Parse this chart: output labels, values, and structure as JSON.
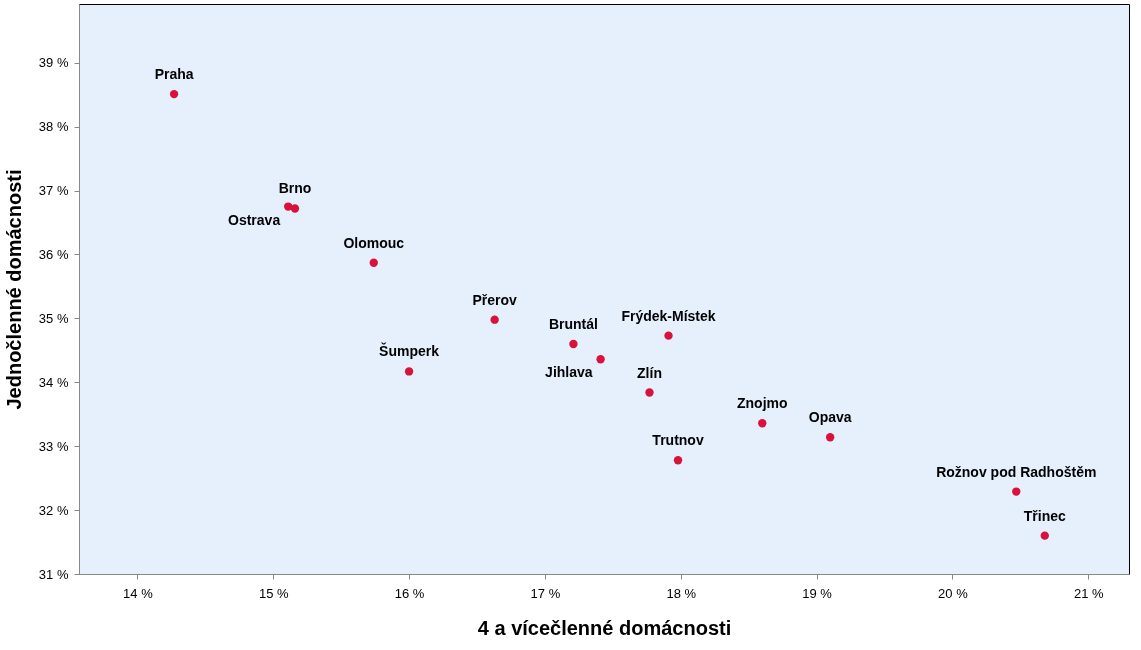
{
  "chart_data": {
    "type": "scatter",
    "xlabel": "4 a vícečlenné domácnosti",
    "ylabel": "Jednočlenné domácnosti",
    "x": [
      14.27,
      15.16,
      15.11,
      15.74,
      16.0,
      16.63,
      17.21,
      17.41,
      17.91,
      17.77,
      17.98,
      18.6,
      19.1,
      20.47,
      20.68
    ],
    "values": [
      38.51,
      36.72,
      36.75,
      35.87,
      34.17,
      34.98,
      34.6,
      34.36,
      34.73,
      33.84,
      32.78,
      33.36,
      33.14,
      32.29,
      31.6
    ],
    "color": "#d9123c",
    "marker": "circle",
    "grid": false,
    "xlim": [
      13.57,
      21.3
    ],
    "ylim": [
      31,
      39.92
    ],
    "xticks": [
      {
        "value": 14,
        "label": "14 %"
      },
      {
        "value": 15,
        "label": "15 %"
      },
      {
        "value": 16,
        "label": "16 %"
      },
      {
        "value": 17,
        "label": "17 %"
      },
      {
        "value": 18,
        "label": "18 %"
      },
      {
        "value": 19,
        "label": "19 %"
      },
      {
        "value": 20,
        "label": "20 %"
      },
      {
        "value": 21,
        "label": "21 %"
      }
    ],
    "yticks": [
      {
        "value": 31,
        "label": "31 %"
      },
      {
        "value": 32,
        "label": "32 %"
      },
      {
        "value": 33,
        "label": "33 %"
      },
      {
        "value": 34,
        "label": "34 %"
      },
      {
        "value": 35,
        "label": "35 %"
      },
      {
        "value": 36,
        "label": "36 %"
      },
      {
        "value": 37,
        "label": "37 %"
      },
      {
        "value": 38,
        "label": "38 %"
      },
      {
        "value": 39,
        "label": "39 %"
      }
    ],
    "annotations": [
      {
        "text": "Praha",
        "x": 14.27,
        "y": 38.51
      },
      {
        "text": "Brno",
        "x": 15.16,
        "y": 36.72
      },
      {
        "text": "Ostrava",
        "x": 15.11,
        "y": 36.75
      },
      {
        "text": "Olomouc",
        "x": 15.74,
        "y": 35.87
      },
      {
        "text": "Šumperk",
        "x": 16.0,
        "y": 34.17
      },
      {
        "text": "Přerov",
        "x": 16.63,
        "y": 34.98
      },
      {
        "text": "Bruntál",
        "x": 17.21,
        "y": 34.6
      },
      {
        "text": "Jihlava",
        "x": 17.41,
        "y": 34.36
      },
      {
        "text": "Frýdek-Místek",
        "x": 17.91,
        "y": 34.73
      },
      {
        "text": "Zlín",
        "x": 17.77,
        "y": 33.84
      },
      {
        "text": "Trutnov",
        "x": 17.98,
        "y": 32.78
      },
      {
        "text": "Znojmo",
        "x": 18.6,
        "y": 33.36
      },
      {
        "text": "Opava",
        "x": 19.1,
        "y": 33.14
      },
      {
        "text": "Rožnov pod Radhoštěm",
        "x": 20.47,
        "y": 32.29
      },
      {
        "text": "Třinec",
        "x": 20.68,
        "y": 31.6
      }
    ]
  }
}
